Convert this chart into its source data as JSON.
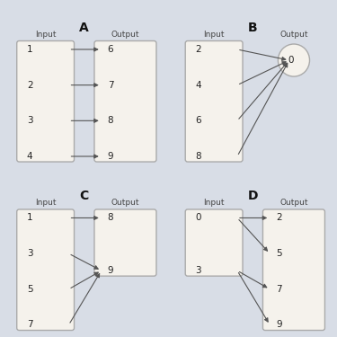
{
  "diagrams": {
    "A": {
      "title": "A",
      "inputs": [
        1,
        2,
        3,
        4
      ],
      "outputs": [
        6,
        7,
        8,
        9
      ],
      "arrows": [
        [
          1,
          6
        ],
        [
          2,
          7
        ],
        [
          3,
          8
        ],
        [
          4,
          9
        ]
      ],
      "col": 0,
      "row": 0
    },
    "B": {
      "title": "B",
      "inputs": [
        2,
        4,
        6,
        8
      ],
      "outputs": [
        0
      ],
      "arrows": [
        [
          2,
          0
        ],
        [
          4,
          0
        ],
        [
          6,
          0
        ],
        [
          8,
          0
        ]
      ],
      "col": 1,
      "row": 0
    },
    "C": {
      "title": "C",
      "inputs": [
        1,
        3,
        5,
        7
      ],
      "outputs": [
        8,
        9
      ],
      "arrows": [
        [
          1,
          8
        ],
        [
          3,
          9
        ],
        [
          5,
          9
        ],
        [
          7,
          9
        ]
      ],
      "col": 0,
      "row": 1
    },
    "D": {
      "title": "D",
      "inputs": [
        0,
        3
      ],
      "outputs": [
        2,
        5,
        7,
        9
      ],
      "arrows": [
        [
          0,
          2
        ],
        [
          0,
          5
        ],
        [
          3,
          7
        ],
        [
          3,
          9
        ]
      ],
      "col": 1,
      "row": 1
    }
  },
  "bg_color": "#d8dde6",
  "box_fill": "#f5f2ec",
  "box_edge": "#aaaaaa",
  "arrow_color": "#555555",
  "text_color": "#222222",
  "label_color": "#444444",
  "title_color": "#111111"
}
